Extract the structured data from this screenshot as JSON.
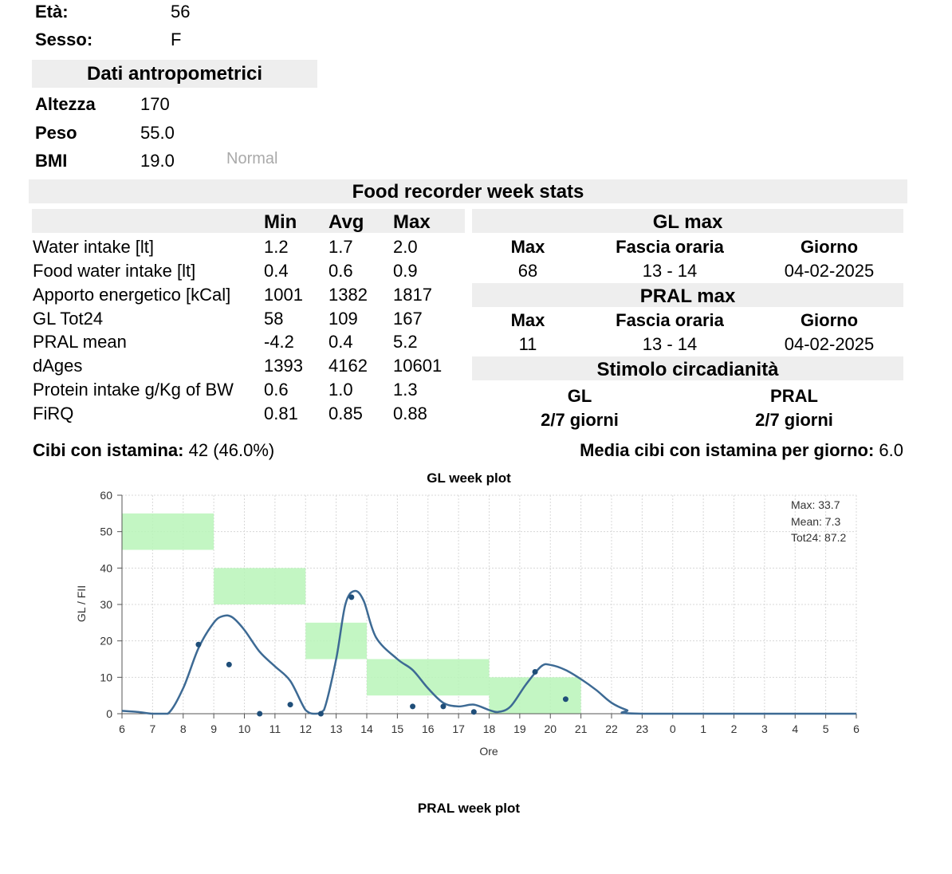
{
  "patient": {
    "age_label": "Età:",
    "age_value": "56",
    "sex_label": "Sesso:",
    "sex_value": "F"
  },
  "anthropometric": {
    "title": "Dati antropometrici",
    "height_label": "Altezza",
    "height_value": "170",
    "weight_label": "Peso",
    "weight_value": "55.0",
    "bmi_label": "BMI",
    "bmi_value": "19.0",
    "bmi_class": "Normal"
  },
  "week_stats": {
    "title": "Food recorder week stats",
    "headers": [
      "Min",
      "Avg",
      "Max"
    ],
    "rows": [
      {
        "label": "Water intake [lt]",
        "min": "1.2",
        "avg": "1.7",
        "max": "2.0"
      },
      {
        "label": "Food water intake [lt]",
        "min": "0.4",
        "avg": "0.6",
        "max": "0.9"
      },
      {
        "label": "Apporto energetico [kCal]",
        "min": "1001",
        "avg": "1382",
        "max": "1817"
      },
      {
        "label": "GL Tot24",
        "min": "58",
        "avg": "109",
        "max": "167"
      },
      {
        "label": "PRAL mean",
        "min": "-4.2",
        "avg": "0.4",
        "max": "5.2"
      },
      {
        "label": "dAges",
        "min": "1393",
        "avg": "4162",
        "max": "10601"
      },
      {
        "label": "Protein intake g/Kg of BW",
        "min": "0.6",
        "avg": "1.0",
        "max": "1.3"
      },
      {
        "label": "FiRQ",
        "min": "0.81",
        "avg": "0.85",
        "max": "0.88"
      }
    ]
  },
  "gl_max": {
    "title": "GL max",
    "headers": [
      "Max",
      "Fascia oraria",
      "Giorno"
    ],
    "values": [
      "68",
      "13 - 14",
      "04-02-2025"
    ]
  },
  "pral_max": {
    "title": "PRAL max",
    "headers": [
      "Max",
      "Fascia oraria",
      "Giorno"
    ],
    "values": [
      "11",
      "13 - 14",
      "04-02-2025"
    ]
  },
  "circadian": {
    "title": "Stimolo circadianità",
    "gl_label": "GL",
    "gl_value": "2/7 giorni",
    "pral_label": "PRAL",
    "pral_value": "2/7 giorni"
  },
  "histamine": {
    "label": "Cibi con istamina:",
    "value": "42 (46.0%)",
    "daily_label": "Media cibi con istamina per giorno:",
    "daily_value": "6.0"
  },
  "colors": {
    "header_bg": "#eeeeee",
    "curve": "#3d6a94",
    "band": "#b8f5b8",
    "grid": "#d8d8d8"
  },
  "chart_data": [
    {
      "type": "line",
      "title": "GL week plot",
      "xlabel": "Ore",
      "ylabel": "GL / FII",
      "ylim": [
        0,
        60
      ],
      "yticks": [
        0,
        10,
        20,
        30,
        40,
        50,
        60
      ],
      "xticks": [
        "6",
        "7",
        "8",
        "9",
        "10",
        "11",
        "12",
        "13",
        "14",
        "15",
        "16",
        "17",
        "18",
        "19",
        "20",
        "21",
        "22",
        "23",
        "0",
        "1",
        "2",
        "3",
        "4",
        "5",
        "6"
      ],
      "grid": true,
      "stats": [
        "Max: 33.7",
        "Mean: 7.3",
        "Tot24: 87.2"
      ],
      "curve": [
        [
          6,
          0.8
        ],
        [
          6.5,
          0.5
        ],
        [
          7,
          0
        ],
        [
          7.5,
          0
        ],
        [
          8,
          7
        ],
        [
          8.5,
          18
        ],
        [
          9,
          25
        ],
        [
          9.3,
          26.8
        ],
        [
          9.6,
          26.5
        ],
        [
          10,
          23
        ],
        [
          10.5,
          17
        ],
        [
          11,
          13
        ],
        [
          11.5,
          9
        ],
        [
          12,
          1
        ],
        [
          12.3,
          0
        ],
        [
          12.6,
          1
        ],
        [
          13,
          15
        ],
        [
          13.3,
          30
        ],
        [
          13.6,
          33.7
        ],
        [
          13.9,
          31
        ],
        [
          14.3,
          21
        ],
        [
          15,
          15
        ],
        [
          15.5,
          12
        ],
        [
          16,
          7
        ],
        [
          16.5,
          3
        ],
        [
          17,
          2
        ],
        [
          17.5,
          2.5
        ],
        [
          18,
          1
        ],
        [
          18.3,
          0.5
        ],
        [
          18.7,
          2
        ],
        [
          19.2,
          8
        ],
        [
          19.7,
          13
        ],
        [
          20,
          13.4
        ],
        [
          20.5,
          12
        ],
        [
          21,
          9.5
        ],
        [
          21.5,
          6.5
        ],
        [
          22,
          3
        ],
        [
          22.5,
          1
        ],
        [
          23,
          0
        ],
        [
          30,
          0
        ]
      ],
      "points": [
        [
          8.5,
          19
        ],
        [
          9.5,
          13.5
        ],
        [
          10.5,
          0
        ],
        [
          11.5,
          2.5
        ],
        [
          12.5,
          0
        ],
        [
          13.5,
          32
        ],
        [
          15.5,
          2
        ],
        [
          16.5,
          2
        ],
        [
          17.5,
          0.5
        ],
        [
          19.5,
          11.5
        ],
        [
          20.5,
          4
        ]
      ],
      "bands": [
        {
          "x": [
            6,
            9
          ],
          "y": [
            45,
            55
          ]
        },
        {
          "x": [
            9,
            12
          ],
          "y": [
            30,
            40
          ]
        },
        {
          "x": [
            12,
            14
          ],
          "y": [
            15,
            25
          ]
        },
        {
          "x": [
            14,
            18
          ],
          "y": [
            5,
            15
          ]
        },
        {
          "x": [
            18,
            21
          ],
          "y": [
            0,
            10
          ]
        }
      ]
    },
    {
      "type": "line",
      "title": "PRAL week plot"
    }
  ]
}
